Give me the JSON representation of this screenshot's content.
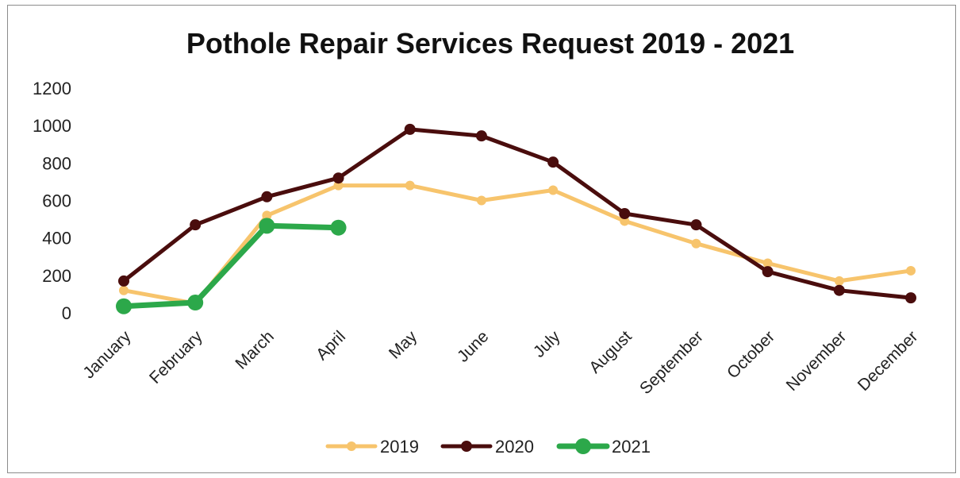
{
  "chart_data": {
    "type": "line",
    "title": "Pothole Repair Services Request 2019 - 2021",
    "xlabel": "",
    "ylabel": "",
    "categories": [
      "January",
      "February",
      "March",
      "April",
      "May",
      "June",
      "July",
      "August",
      "September",
      "October",
      "November",
      "December"
    ],
    "ylim": [
      0,
      1200
    ],
    "yticks": [
      "0",
      "200",
      "400",
      "600",
      "800",
      "1000",
      "1200"
    ],
    "grid": false,
    "legend_position": "bottom",
    "series": [
      {
        "name": "2019",
        "color": "#f7c46c",
        "values": [
          120,
          50,
          520,
          680,
          680,
          600,
          655,
          490,
          370,
          265,
          170,
          225
        ]
      },
      {
        "name": "2020",
        "color": "#4a0d0d",
        "values": [
          170,
          470,
          620,
          720,
          980,
          945,
          805,
          530,
          470,
          220,
          120,
          80
        ]
      },
      {
        "name": "2021",
        "color": "#2ca84a",
        "values": [
          35,
          55,
          465,
          455,
          null,
          null,
          null,
          null,
          null,
          null,
          null,
          null
        ]
      }
    ]
  }
}
